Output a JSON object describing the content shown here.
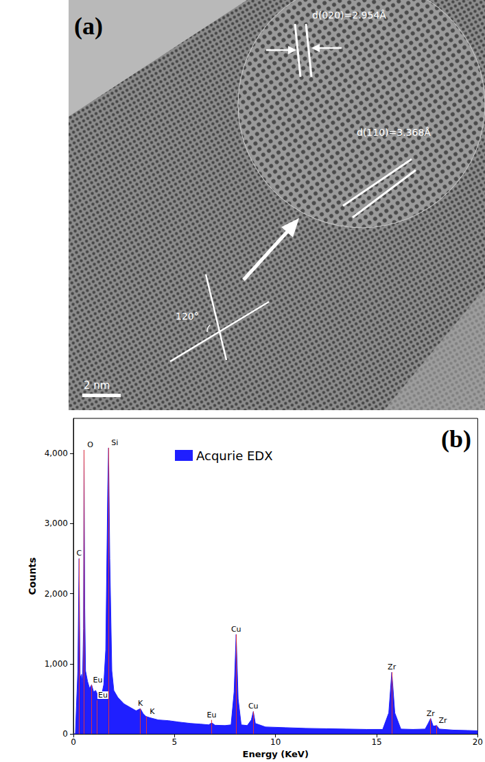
{
  "panel_a": {
    "label": "(a)",
    "scale_bar": "2 nm",
    "angle": "120°",
    "d_spacings": [
      "d(020)=2.954Å",
      "d(110)=3.368Å"
    ]
  },
  "chart_data": {
    "type": "area",
    "panel_label": "(b)",
    "xlabel": "Energy (KeV)",
    "ylabel": "Counts",
    "xlim": [
      0,
      20
    ],
    "xticks": [
      0,
      5,
      10,
      15,
      20
    ],
    "ylim": [
      0,
      4500
    ],
    "yticks": [
      0,
      1000,
      2000,
      3000,
      4000
    ],
    "legend": "top",
    "grid": false,
    "series": [
      {
        "name": "Acqurie EDX",
        "color": "#1f1fff",
        "x": [
          0,
          0.1,
          0.15,
          0.22,
          0.28,
          0.33,
          0.4,
          0.45,
          0.5,
          0.525,
          0.56,
          0.6,
          0.7,
          0.8,
          0.9,
          1.0,
          1.1,
          1.2,
          1.3,
          1.4,
          1.5,
          1.6,
          1.7,
          1.74,
          1.8,
          1.9,
          2.0,
          2.2,
          2.5,
          2.8,
          3.1,
          3.31,
          3.45,
          3.59,
          3.8,
          4.2,
          4.7,
          5.2,
          5.8,
          6.3,
          6.7,
          6.84,
          7.0,
          7.5,
          7.8,
          7.95,
          8.05,
          8.15,
          8.3,
          8.6,
          8.8,
          8.9,
          9.0,
          9.5,
          10.5,
          11.5,
          12.5,
          13.5,
          14.5,
          15.3,
          15.6,
          15.75,
          15.9,
          16.2,
          16.8,
          17.4,
          17.55,
          17.67,
          17.8,
          17.97,
          18.1,
          18.8,
          19.5,
          20
        ],
        "values": [
          0,
          0,
          400,
          900,
          2500,
          800,
          850,
          700,
          1500,
          4050,
          1800,
          900,
          750,
          650,
          700,
          600,
          620,
          560,
          520,
          560,
          700,
          1200,
          3500,
          4080,
          2500,
          900,
          620,
          520,
          430,
          380,
          330,
          360,
          290,
          250,
          230,
          200,
          190,
          170,
          150,
          140,
          130,
          160,
          125,
          120,
          130,
          600,
          1420,
          500,
          130,
          120,
          200,
          320,
          150,
          100,
          90,
          80,
          75,
          70,
          65,
          65,
          300,
          880,
          300,
          70,
          65,
          70,
          150,
          220,
          110,
          120,
          70,
          55,
          50,
          45
        ]
      }
    ],
    "annotations": [
      {
        "text": "C",
        "x": 0.28,
        "y": 2500
      },
      {
        "text": "O",
        "x": 0.525,
        "y": 4050
      },
      {
        "text": "Eu",
        "x": 0.9,
        "y": 700
      },
      {
        "text": "Eu",
        "x": 1.15,
        "y": 480
      },
      {
        "text": "Si",
        "x": 1.74,
        "y": 4080
      },
      {
        "text": "K",
        "x": 3.31,
        "y": 360
      },
      {
        "text": "K",
        "x": 3.59,
        "y": 250
      },
      {
        "text": "Eu",
        "x": 6.84,
        "y": 200
      },
      {
        "text": "Cu",
        "x": 8.05,
        "y": 1420
      },
      {
        "text": "Cu",
        "x": 8.9,
        "y": 320
      },
      {
        "text": "Zr",
        "x": 15.75,
        "y": 880
      },
      {
        "text": "Zr",
        "x": 17.67,
        "y": 220
      },
      {
        "text": "Zr",
        "x": 17.97,
        "y": 120
      }
    ]
  }
}
